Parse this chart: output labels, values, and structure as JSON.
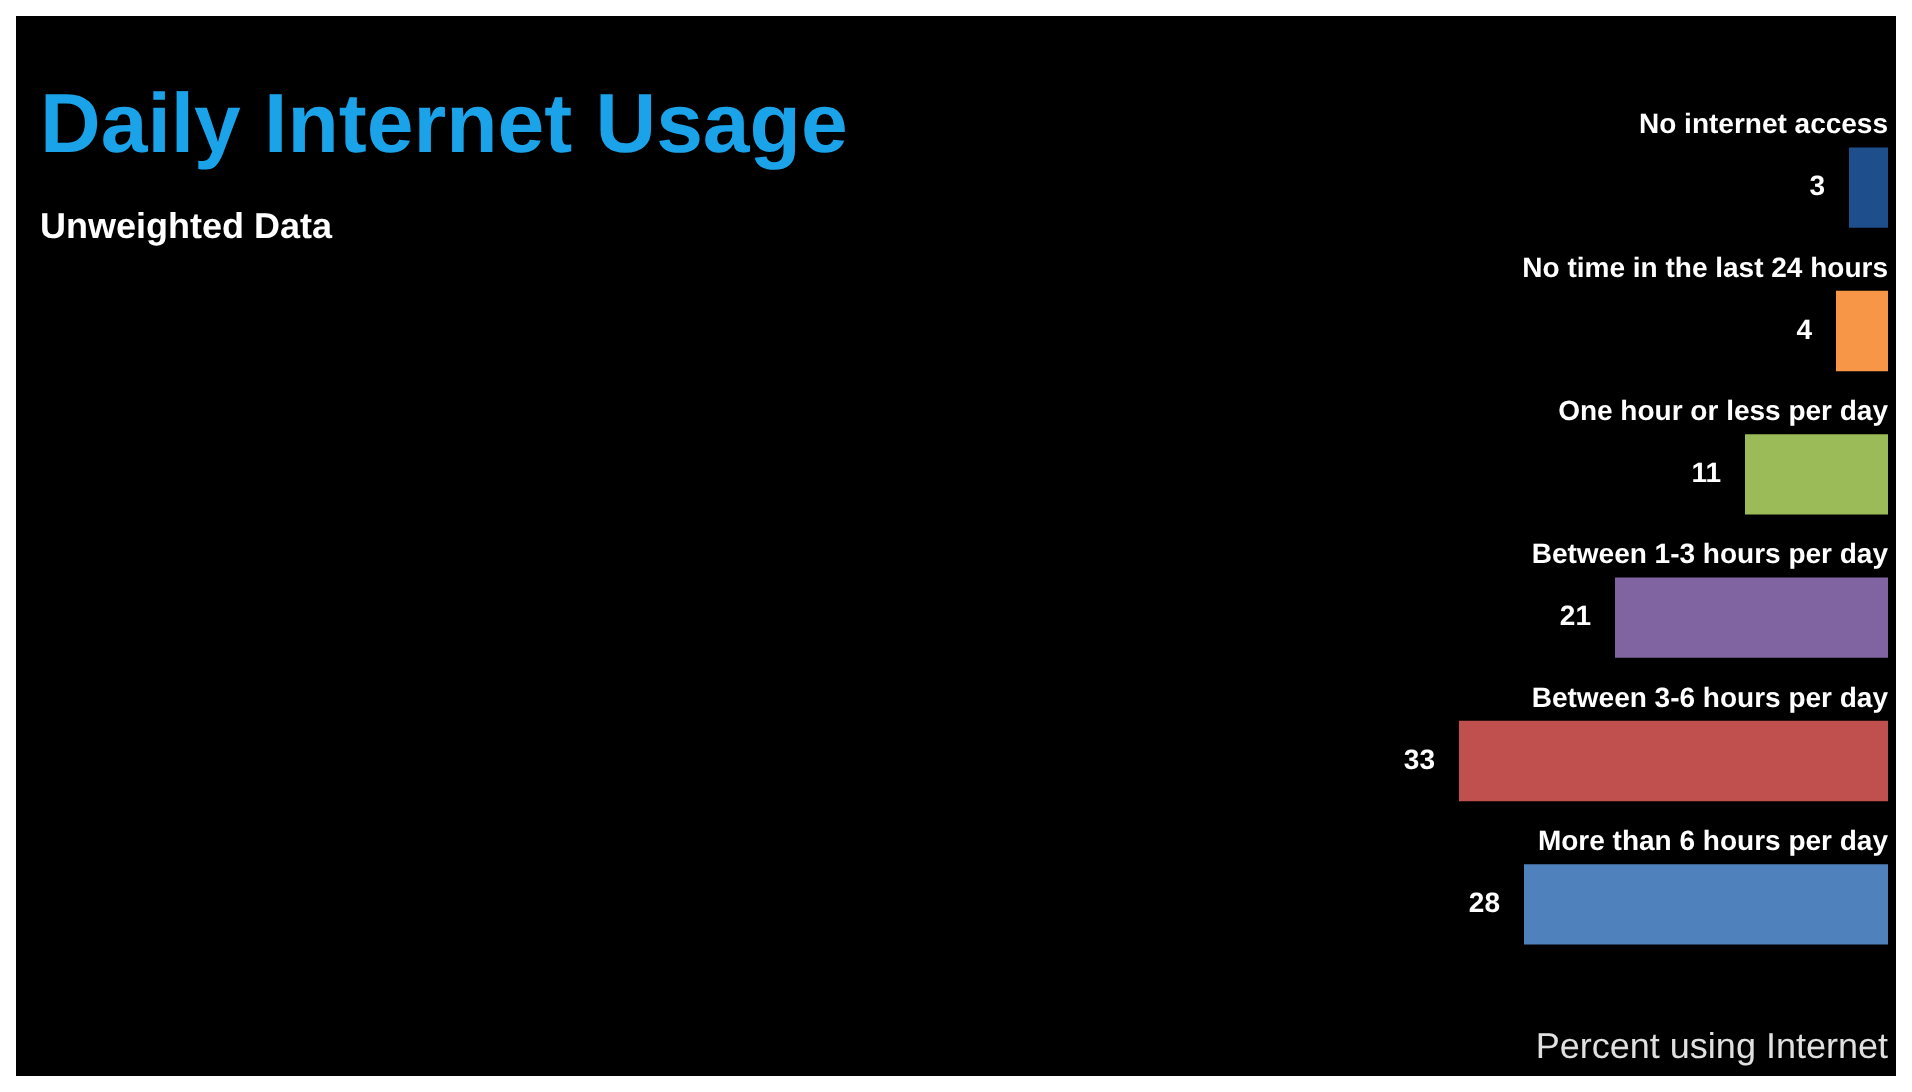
{
  "chart_data": {
    "type": "bar",
    "orientation": "horizontal",
    "title": "Daily Internet Usage",
    "subtitle": "Unweighted Data",
    "xlabel": "Percent using Internet",
    "categories": [
      "No internet access",
      "No time in the last 24 hours",
      "One hour or less per day",
      "Between 1-3 hours per day",
      "Between 3-6 hours per day",
      "More than 6 hours per day"
    ],
    "values": [
      3,
      4,
      11,
      21,
      33,
      28
    ],
    "colors": [
      "#1f4e8c",
      "#f79646",
      "#9bbb59",
      "#8064a2",
      "#c0504d",
      "#4f81bd"
    ],
    "data_labels": true,
    "grid": false,
    "legend": false
  }
}
